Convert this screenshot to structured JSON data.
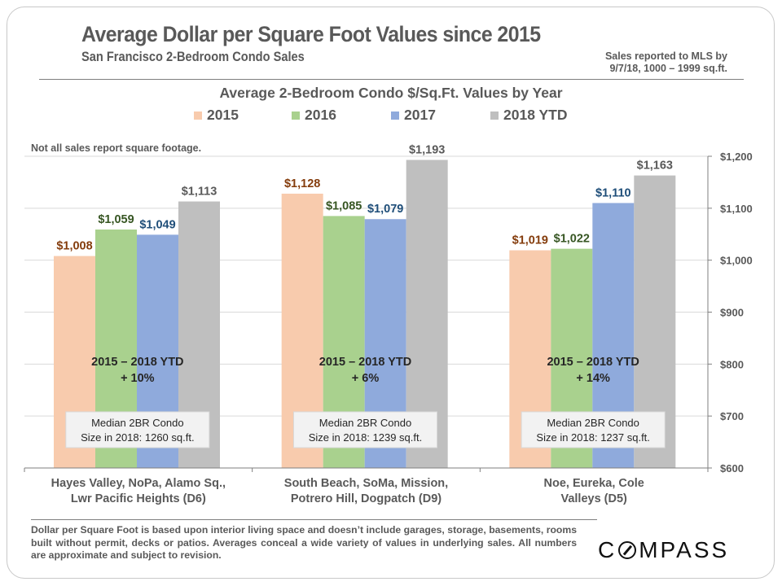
{
  "header": {
    "title": "Average Dollar per Square Foot Values since 2015",
    "subtitle": "San Francisco 2-Bedroom  Condo Sales",
    "mls_note_line1": "Sales reported to MLS by",
    "mls_note_line2": "9/7/18, 1000 – 1999 sq.ft."
  },
  "note_top": "Not all sales report square footage.",
  "footnote": "Dollar per Square Foot is based upon interior living space and doesn’t include garages, storage, basements, rooms built without permit, decks or patios. Averages conceal a wide variety of values in underlying sales. All numbers are approximate and subject to revision.",
  "logo": {
    "pre": "C",
    "post": "MPASS"
  },
  "chart_data": {
    "type": "bar",
    "title": "Average 2-Bedroom Condo $/Sq.Ft. Values by Year",
    "xlabel": "",
    "ylabel": "",
    "ylim": [
      600,
      1200
    ],
    "yticks": [
      600,
      700,
      800,
      900,
      1000,
      1100,
      1200
    ],
    "ytick_labels": [
      "$600",
      "$700",
      "$800",
      "$900",
      "$1,000",
      "$1,100",
      "$1,200"
    ],
    "y_axis_side": "right",
    "grid": true,
    "legend_position": "top",
    "categories": [
      [
        "Hayes Valley, NoPa, Alamo Sq.,",
        "Lwr Pacific Heights (D6)"
      ],
      [
        "South Beach, SoMa, Mission,",
        "Potrero Hill, Dogpatch (D9)"
      ],
      [
        "Noe, Eureka, Cole",
        "Valleys (D5)"
      ]
    ],
    "series": [
      {
        "name": "2015",
        "color": "#F8CBAD",
        "label_color": "#843C0C",
        "values": [
          1008,
          1128,
          1019
        ],
        "labels": [
          "$1,008",
          "$1,128",
          "$1,019"
        ]
      },
      {
        "name": "2016",
        "color": "#A9D18E",
        "label_color": "#375623",
        "values": [
          1059,
          1085,
          1022
        ],
        "labels": [
          "$1,059",
          "$1,085",
          "$1,022"
        ]
      },
      {
        "name": "2017",
        "color": "#8FAADC",
        "label_color": "#1F4E79",
        "values": [
          1049,
          1079,
          1110
        ],
        "labels": [
          "$1,049",
          "$1,079",
          "$1,110"
        ]
      },
      {
        "name": "2018 YTD",
        "color": "#BFBFBF",
        "label_color": "#595959",
        "values": [
          1113,
          1193,
          1163
        ],
        "labels": [
          "$1,113",
          "$1,193",
          "$1,163"
        ]
      }
    ],
    "annotations": [
      {
        "change_line1": "2015 – 2018 YTD",
        "change_line2": "+ 10%",
        "size_line1": "Median 2BR Condo",
        "size_line2": "Size in 2018: 1260 sq.ft."
      },
      {
        "change_line1": "2015 – 2018 YTD",
        "change_line2": "+ 6%",
        "size_line1": "Median 2BR Condo",
        "size_line2": "Size in 2018: 1239 sq.ft."
      },
      {
        "change_line1": "2015 – 2018 YTD",
        "change_line2": "+ 14%",
        "size_line1": "Median 2BR Condo",
        "size_line2": "Size in 2018: 1237 sq.ft."
      }
    ]
  }
}
